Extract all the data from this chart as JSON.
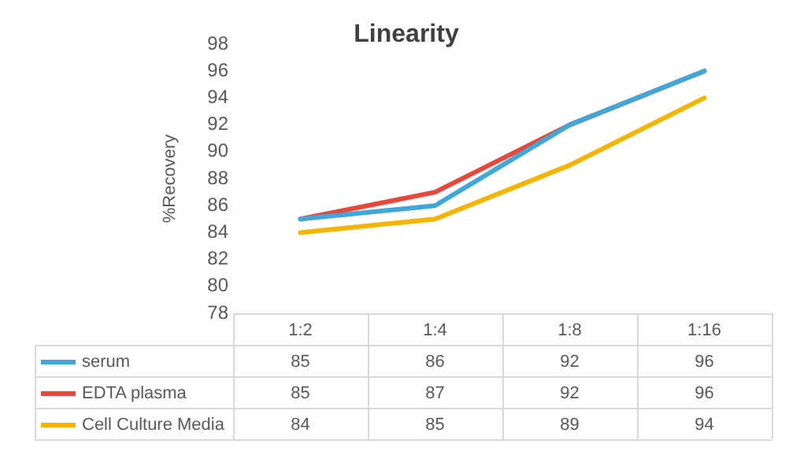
{
  "chart_data": {
    "type": "line",
    "title": "Linearity",
    "ylabel": "%Recovery",
    "categories": [
      "1:2",
      "1:4",
      "1:8",
      "1:16"
    ],
    "series": [
      {
        "name": "serum",
        "color": "#41a7d9",
        "values": [
          85,
          86,
          92,
          96
        ]
      },
      {
        "name": "EDTA plasma",
        "color": "#e8473b",
        "values": [
          85,
          87,
          92,
          96
        ]
      },
      {
        "name": "Cell Culture Media",
        "color": "#f5b400",
        "values": [
          84,
          85,
          89,
          94
        ]
      }
    ],
    "ylim": [
      78,
      98
    ],
    "yticks": [
      78,
      80,
      82,
      84,
      86,
      88,
      90,
      92,
      94,
      96,
      98
    ],
    "grid": false,
    "legend": "bottom left",
    "data_labels": true,
    "marker": "none",
    "line_style": "solid"
  }
}
